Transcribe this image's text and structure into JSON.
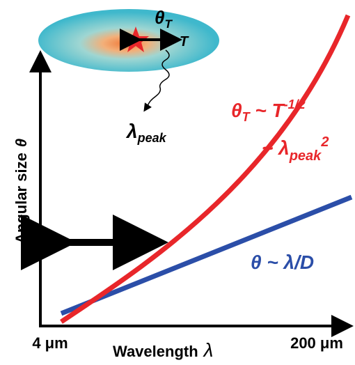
{
  "inset": {
    "theta": "θ",
    "theta_subscript": "T",
    "temperature": "T",
    "lambda": "λ",
    "lambda_subscript": "peak"
  },
  "axes": {
    "y_label": "Angular size",
    "y_symbol": "θ",
    "x_label": "Wavelength",
    "x_symbol": "λ",
    "x_min_label": "4 μm",
    "x_max_label": "200 μm"
  },
  "thermal_curve": {
    "theta": "θ",
    "theta_subscript": "T",
    "relation": " ~ ",
    "temperature": "T",
    "exponent": "-1/2",
    "relation2": "~ ",
    "lambda": "λ",
    "lambda_subscript": "peak",
    "lambda_exponent": "2"
  },
  "diffraction_curve": {
    "label": "θ ~ λ/",
    "diameter": "D"
  }
}
